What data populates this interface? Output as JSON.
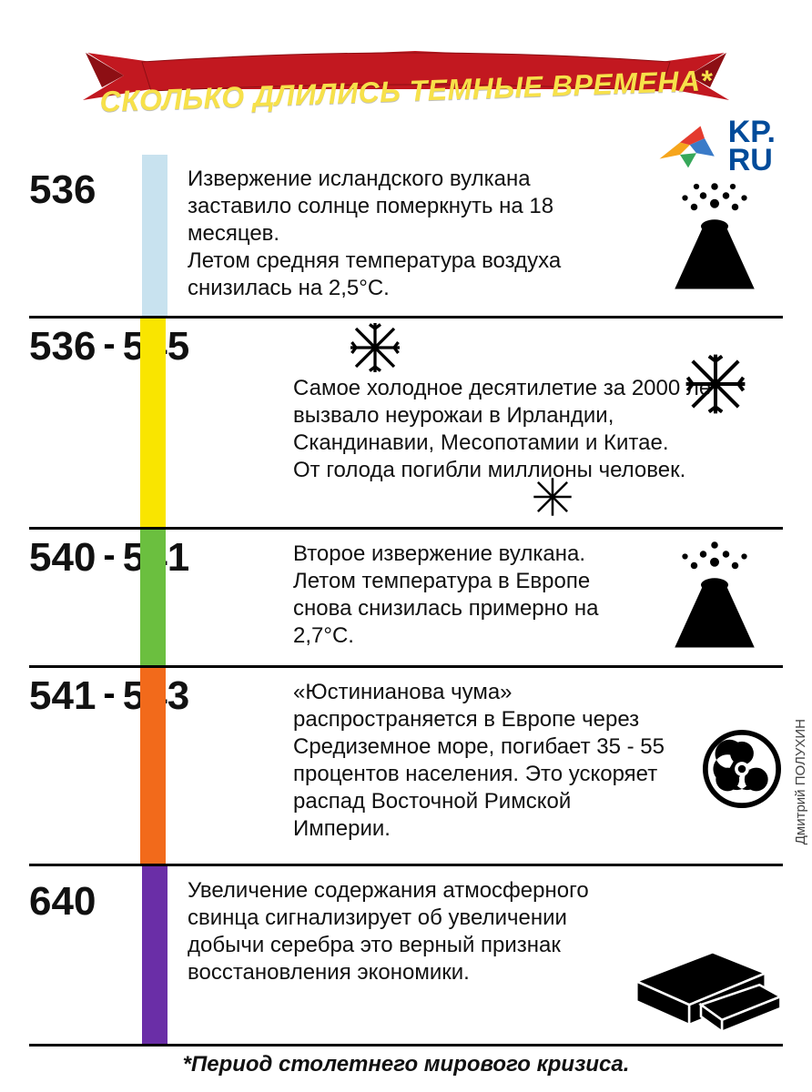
{
  "banner": {
    "text": "СКОЛЬКО ДЛИЛИСЬ ТЕМНЫЕ ВРЕМЕНА*",
    "bg_color": "#c21820",
    "text_color": "#f7e14a"
  },
  "logo": {
    "text_top": "KP.",
    "text_bottom": "RU",
    "text_color": "#004b9a"
  },
  "author": "Дмитрий ПОЛУХИН",
  "footnote": "*Период столетнего мирового кризиса.",
  "divider_color": "#000000",
  "rows": [
    {
      "year_a": "536",
      "year_b": "",
      "bar_color": "#c8e2ef",
      "text": "Извержение исландского вулкана заставило солнце померкнуть на 18 месяцев.\nЛетом средняя температура воздуха снизилась на 2,5°С.",
      "icon": "volcano"
    },
    {
      "year_a": "536",
      "year_b": "545",
      "bar_color": "#f9e500",
      "text": "Самое холодное десятилетие за 2000 лет вызвало неурожаи в Ирландии, Скандинавии, Месопотамии и Китае.\nОт голода погибли миллионы человек.",
      "icon": "snow"
    },
    {
      "year_a": "540",
      "year_b": "541",
      "bar_color": "#6bbf3f",
      "text": "Второе извержение вулкана.\nЛетом температура в Европе снова снизилась примерно на 2,7°С.",
      "icon": "volcano"
    },
    {
      "year_a": "541",
      "year_b": "543",
      "bar_color": "#f26a1b",
      "text": "«Юстинианова чума» распространяется в Европе через Средиземное море, погибает 35 - 55 процентов населения. Это ускоряет распад Восточной Римской Империи.",
      "icon": "biohazard"
    },
    {
      "year_a": "640",
      "year_b": "",
      "bar_color": "#6a2ea7",
      "text": "Увеличение содержания атмосферного свинца сигнализирует об увеличении добычи серебра это верный признак восстановления экономики.",
      "icon": "ingots"
    }
  ]
}
